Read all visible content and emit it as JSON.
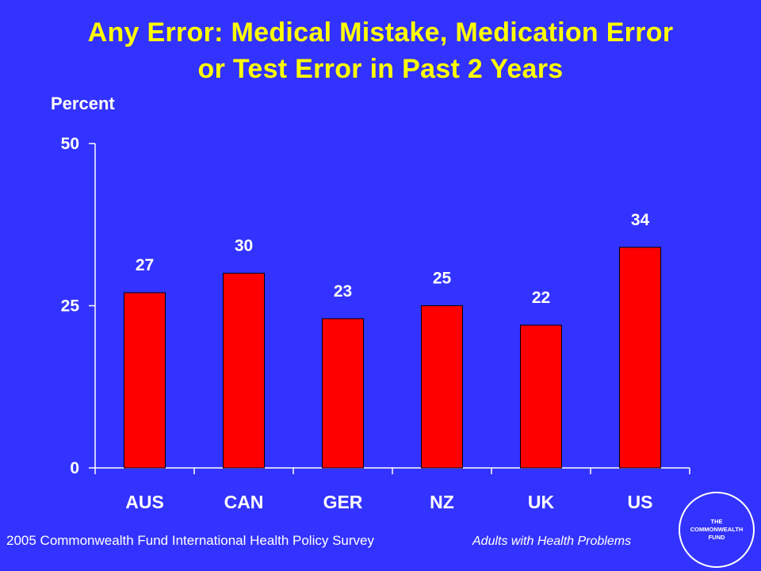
{
  "title_line1": "Any Error: Medical Mistake, Medication Error",
  "title_line2": "or Test Error in Past 2 Years",
  "footer": {
    "source": "2005 Commonwealth Fund International Health Policy Survey",
    "population": "Adults with Health Problems"
  },
  "logo": {
    "line1": "THE",
    "line2": "COMMONWEALTH",
    "line3": "FUND"
  },
  "colors": {
    "background": "#3333ff",
    "title": "#ffff00",
    "bar": "#ff0000",
    "text": "#ffffff"
  },
  "chart_data": {
    "type": "bar",
    "title": "Any Error: Medical Mistake, Medication Error or Test Error in Past 2 Years",
    "xlabel": "",
    "ylabel": "Percent",
    "categories": [
      "AUS",
      "CAN",
      "GER",
      "NZ",
      "UK",
      "US"
    ],
    "values": [
      27,
      30,
      23,
      25,
      22,
      34
    ],
    "ylim": [
      0,
      50
    ],
    "yticks": [
      0,
      25,
      50
    ],
    "grid": false,
    "legend": "none",
    "data_labels": true
  }
}
